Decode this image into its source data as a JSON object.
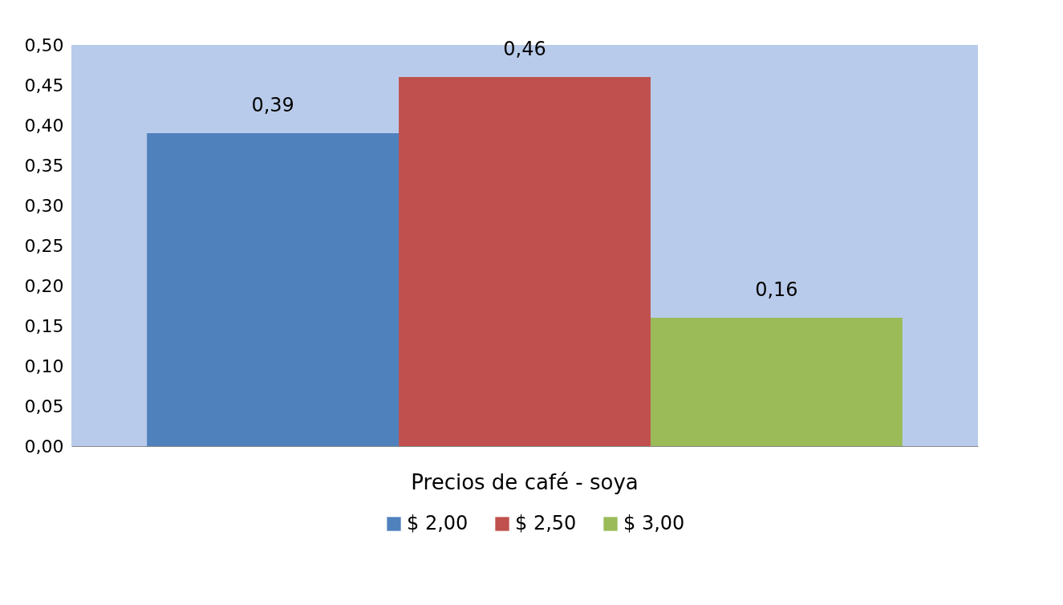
{
  "chart_data": {
    "type": "bar",
    "categories": [
      "Precios de café - soya"
    ],
    "series": [
      {
        "name": "$ 2,00",
        "color": "#4f81bd",
        "values": [
          0.39
        ],
        "value_labels": [
          "0,39"
        ]
      },
      {
        "name": "$ 2,50",
        "color": "#c0504d",
        "values": [
          0.46
        ],
        "value_labels": [
          "0,46"
        ]
      },
      {
        "name": "$ 3,00",
        "color": "#9bbb59",
        "values": [
          0.16
        ],
        "value_labels": [
          "0,16"
        ]
      }
    ],
    "ylim": [
      0,
      0.5
    ],
    "yticks": [
      {
        "value": 0,
        "label": "0,00"
      },
      {
        "value": 0.05,
        "label": "0,05"
      },
      {
        "value": 0.1,
        "label": "0,10"
      },
      {
        "value": 0.15,
        "label": "0,15"
      },
      {
        "value": 0.2,
        "label": "0,20"
      },
      {
        "value": 0.25,
        "label": "0,25"
      },
      {
        "value": 0.3,
        "label": "0,30"
      },
      {
        "value": 0.35,
        "label": "0,35"
      },
      {
        "value": 0.4,
        "label": "0,40"
      },
      {
        "value": 0.45,
        "label": "0,45"
      },
      {
        "value": 0.5,
        "label": "0,50"
      }
    ],
    "legend": "bottom"
  }
}
